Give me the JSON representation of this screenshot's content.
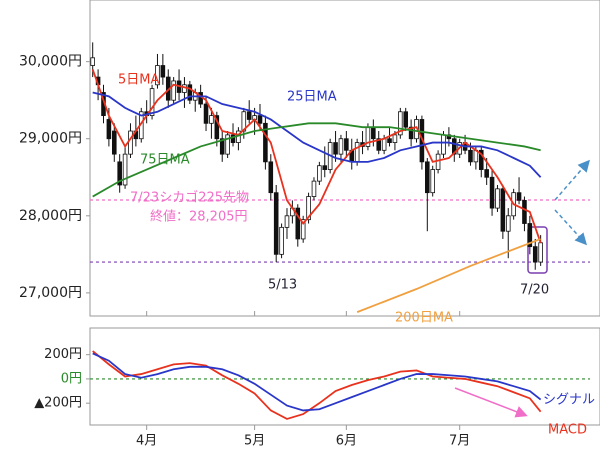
{
  "chart_data": [
    {
      "type": "candlestick",
      "xlim": [
        -0.5,
        94
      ],
      "ylim": [
        26700,
        30800
      ],
      "yticks": [
        {
          "value": 30000,
          "label": "30,000円"
        },
        {
          "value": 29000,
          "label": "29,000円"
        },
        {
          "value": 28000,
          "label": "28,000円"
        },
        {
          "value": 27000,
          "label": "27,000円"
        }
      ],
      "up_color": "#ffffff",
      "down_color": "#111111",
      "ohlc": [
        [
          29950,
          30250,
          29800,
          30050
        ],
        [
          29800,
          29900,
          29500,
          29700
        ],
        [
          29600,
          29700,
          29200,
          29300
        ],
        [
          29250,
          29400,
          28900,
          29000
        ],
        [
          29100,
          29200,
          28700,
          28800
        ],
        [
          28700,
          28800,
          28300,
          28400
        ],
        [
          28400,
          28900,
          28350,
          28800
        ],
        [
          28800,
          29200,
          28750,
          29100
        ],
        [
          29100,
          29300,
          28900,
          29000
        ],
        [
          29000,
          29400,
          28950,
          29350
        ],
        [
          29350,
          29500,
          29200,
          29300
        ],
        [
          29300,
          29700,
          29250,
          29650
        ],
        [
          29700,
          30100,
          29650,
          29950
        ],
        [
          29950,
          30100,
          29700,
          29800
        ],
        [
          29800,
          29900,
          29400,
          29500
        ],
        [
          29500,
          29800,
          29450,
          29750
        ],
        [
          29750,
          29900,
          29500,
          29600
        ],
        [
          29600,
          29800,
          29400,
          29700
        ],
        [
          29700,
          29750,
          29450,
          29500
        ],
        [
          29500,
          29650,
          29350,
          29600
        ],
        [
          29600,
          29700,
          29400,
          29450
        ],
        [
          29450,
          29550,
          29100,
          29200
        ],
        [
          29200,
          29400,
          29000,
          29300
        ],
        [
          29300,
          29350,
          28900,
          29000
        ],
        [
          29000,
          29100,
          28700,
          28800
        ],
        [
          28800,
          29100,
          28750,
          29050
        ],
        [
          29050,
          29200,
          28900,
          28950
        ],
        [
          28950,
          29150,
          28850,
          29100
        ],
        [
          29100,
          29400,
          29000,
          29350
        ],
        [
          29350,
          29500,
          29200,
          29250
        ],
        [
          29250,
          29400,
          29050,
          29300
        ],
        [
          29300,
          29450,
          29100,
          29200
        ],
        [
          29200,
          29300,
          28600,
          28700
        ],
        [
          28700,
          28800,
          28200,
          28300
        ],
        [
          28300,
          28400,
          27400,
          27500
        ],
        [
          27500,
          27900,
          27450,
          27850
        ],
        [
          27850,
          28100,
          27700,
          28000
        ],
        [
          28000,
          28200,
          27900,
          28100
        ],
        [
          28100,
          28150,
          27600,
          27700
        ],
        [
          27700,
          28000,
          27650,
          27950
        ],
        [
          27950,
          28300,
          27900,
          28250
        ],
        [
          28250,
          28500,
          28200,
          28450
        ],
        [
          28450,
          28700,
          28400,
          28650
        ],
        [
          28650,
          28900,
          28500,
          28600
        ],
        [
          28600,
          29000,
          28550,
          28950
        ],
        [
          28950,
          29100,
          28700,
          28800
        ],
        [
          28800,
          29050,
          28700,
          29000
        ],
        [
          29000,
          29100,
          28750,
          28850
        ],
        [
          28850,
          29000,
          28600,
          28700
        ],
        [
          28700,
          29000,
          28650,
          28950
        ],
        [
          28950,
          29100,
          28800,
          28900
        ],
        [
          28900,
          29200,
          28850,
          29150
        ],
        [
          29150,
          29250,
          28900,
          29000
        ],
        [
          29000,
          29100,
          28800,
          28850
        ],
        [
          28850,
          29050,
          28800,
          29000
        ],
        [
          29000,
          29150,
          28900,
          28950
        ],
        [
          28950,
          29100,
          28850,
          29050
        ],
        [
          29050,
          29400,
          29000,
          29350
        ],
        [
          29350,
          29400,
          29100,
          29150
        ],
        [
          29150,
          29250,
          28900,
          29000
        ],
        [
          29000,
          29300,
          28950,
          29250
        ],
        [
          29250,
          29300,
          28600,
          28700
        ],
        [
          28700,
          28750,
          27800,
          28300
        ],
        [
          28300,
          28650,
          28250,
          28600
        ],
        [
          28600,
          28850,
          28550,
          28800
        ],
        [
          28800,
          29100,
          28750,
          29050
        ],
        [
          29050,
          29150,
          28900,
          29000
        ],
        [
          29000,
          29050,
          28700,
          28800
        ],
        [
          28800,
          29000,
          28750,
          28950
        ],
        [
          28950,
          29050,
          28800,
          28850
        ],
        [
          28850,
          28950,
          28650,
          28700
        ],
        [
          28700,
          28900,
          28600,
          28850
        ],
        [
          28850,
          28900,
          28500,
          28600
        ],
        [
          28600,
          28750,
          28400,
          28500
        ],
        [
          28500,
          28600,
          28000,
          28100
        ],
        [
          28100,
          28400,
          28050,
          28350
        ],
        [
          28350,
          28400,
          27700,
          27800
        ],
        [
          27800,
          28100,
          27450,
          28000
        ],
        [
          28000,
          28350,
          27950,
          28300
        ],
        [
          28300,
          28500,
          28150,
          28200
        ],
        [
          28200,
          28250,
          27800,
          27900
        ],
        [
          27900,
          28000,
          27500,
          27600
        ],
        [
          27600,
          27700,
          27300,
          27400
        ],
        [
          27400,
          27750,
          27350,
          27650
        ]
      ],
      "series": [
        {
          "name": "5日MA",
          "color": "#e8321e",
          "x": [
            0,
            3,
            6,
            9,
            12,
            15,
            18,
            21,
            24,
            27,
            30,
            33,
            36,
            39,
            42,
            45,
            48,
            51,
            54,
            57,
            60,
            63,
            66,
            69,
            72,
            75,
            78,
            81,
            83
          ],
          "values": [
            29900,
            29300,
            28900,
            29200,
            29500,
            29700,
            29650,
            29500,
            29100,
            29050,
            29250,
            28950,
            28200,
            27900,
            28150,
            28600,
            28850,
            28950,
            29000,
            29100,
            29150,
            28700,
            28750,
            28950,
            28800,
            28500,
            28150,
            28050,
            27650
          ]
        },
        {
          "name": "25日MA",
          "color": "#2a36c8",
          "x": [
            0,
            3,
            6,
            9,
            12,
            15,
            18,
            21,
            24,
            27,
            30,
            33,
            36,
            39,
            42,
            45,
            48,
            51,
            54,
            57,
            60,
            63,
            66,
            69,
            72,
            75,
            78,
            81,
            83
          ],
          "values": [
            29600,
            29550,
            29400,
            29300,
            29350,
            29450,
            29550,
            29550,
            29450,
            29400,
            29350,
            29250,
            29100,
            28950,
            28850,
            28750,
            28700,
            28700,
            28750,
            28850,
            28900,
            28950,
            28950,
            28900,
            28900,
            28850,
            28750,
            28650,
            28500
          ]
        },
        {
          "name": "75日MA",
          "color": "#2a8a2a",
          "x": [
            0,
            5,
            10,
            15,
            20,
            25,
            30,
            35,
            40,
            45,
            50,
            55,
            60,
            65,
            70,
            75,
            80,
            83
          ],
          "values": [
            28250,
            28450,
            28600,
            28750,
            28900,
            29000,
            29100,
            29150,
            29200,
            29200,
            29150,
            29150,
            29100,
            29050,
            29000,
            28950,
            28900,
            28850
          ]
        },
        {
          "name": "200日MA",
          "color": "#f0a040",
          "x": [
            49,
            60,
            70,
            83
          ],
          "values": [
            26750,
            27050,
            27350,
            27700
          ]
        }
      ],
      "hlines": [
        {
          "value": 28205,
          "color": "#f06ec8"
        },
        {
          "value": 27400,
          "color": "#7a3fb0"
        }
      ],
      "annotations": [
        "7/23シカゴ225先物",
        "終値：28,205円",
        "5/13",
        "7/20"
      ]
    },
    {
      "type": "line",
      "xlim": [
        -0.5,
        94
      ],
      "ylim": [
        -380,
        420
      ],
      "yticks": [
        {
          "value": 200,
          "label": "200円"
        },
        {
          "value": 0,
          "label": "0円"
        },
        {
          "value": -200,
          "label": "▲200円"
        }
      ],
      "xticks": [
        {
          "value": 10,
          "label": "4月"
        },
        {
          "value": 30,
          "label": "5月"
        },
        {
          "value": 47,
          "label": "6月"
        },
        {
          "value": 68,
          "label": "7月"
        }
      ],
      "series": [
        {
          "name": "MACD",
          "color": "#e8321e",
          "x": [
            0,
            3,
            6,
            9,
            12,
            15,
            18,
            21,
            24,
            27,
            30,
            33,
            36,
            39,
            42,
            45,
            48,
            51,
            54,
            57,
            60,
            63,
            66,
            69,
            72,
            75,
            78,
            81,
            83
          ],
          "values": [
            230,
            120,
            20,
            40,
            80,
            120,
            130,
            110,
            30,
            -40,
            -120,
            -260,
            -330,
            -290,
            -200,
            -100,
            -50,
            -10,
            20,
            60,
            70,
            20,
            10,
            0,
            -30,
            -60,
            -110,
            -160,
            -270
          ]
        },
        {
          "name": "シグナル",
          "color": "#2a36c8",
          "x": [
            0,
            3,
            6,
            9,
            12,
            15,
            18,
            21,
            24,
            27,
            30,
            33,
            36,
            39,
            42,
            45,
            48,
            51,
            54,
            57,
            60,
            63,
            66,
            69,
            72,
            75,
            78,
            81,
            83
          ],
          "values": [
            210,
            150,
            40,
            10,
            40,
            80,
            100,
            100,
            80,
            30,
            -40,
            -130,
            -220,
            -260,
            -250,
            -200,
            -150,
            -100,
            -50,
            0,
            40,
            40,
            30,
            20,
            0,
            -20,
            -60,
            -100,
            -170
          ]
        }
      ],
      "hlines": [
        {
          "value": 0,
          "color": "#2a8a2a"
        }
      ]
    }
  ]
}
